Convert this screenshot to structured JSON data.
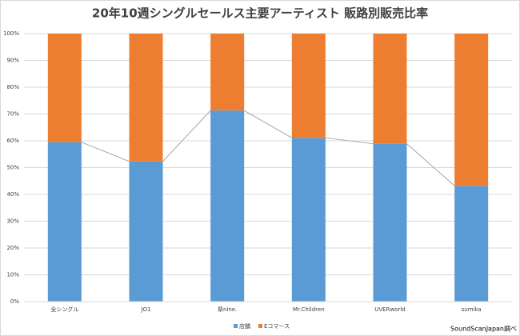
{
  "chart_data": {
    "type": "stacked_bar",
    "title": "20年10週シングルセールス主要アーティスト 販路別販売比率",
    "categories": [
      "全シングル",
      "JO1",
      "祭nine.",
      "Mr.Children",
      "UVERworld",
      "sumika"
    ],
    "series": [
      {
        "name": "店舗",
        "color": "#5b9bd5",
        "values": [
          59.5,
          52.3,
          71.3,
          61.1,
          58.9,
          43.2
        ]
      },
      {
        "name": "Eコマース",
        "color": "#ed7d31",
        "values": [
          40.5,
          47.7,
          28.7,
          38.9,
          41.1,
          56.8
        ]
      }
    ],
    "ylim": [
      0,
      100
    ],
    "yticks": [
      {
        "value": 0,
        "label": "0%"
      },
      {
        "value": 10,
        "label": "10%"
      },
      {
        "value": 20,
        "label": "20%"
      },
      {
        "value": 30,
        "label": "30%"
      },
      {
        "value": 40,
        "label": "40%"
      },
      {
        "value": 50,
        "label": "50%"
      },
      {
        "value": 60,
        "label": "60%"
      },
      {
        "value": 70,
        "label": "70%"
      },
      {
        "value": 80,
        "label": "80%"
      },
      {
        "value": 90,
        "label": "90%"
      },
      {
        "value": 100,
        "label": "100%"
      }
    ],
    "grid": true,
    "series_lines": true,
    "legend": "bottom",
    "source": "SoundScanJapan調べ"
  }
}
